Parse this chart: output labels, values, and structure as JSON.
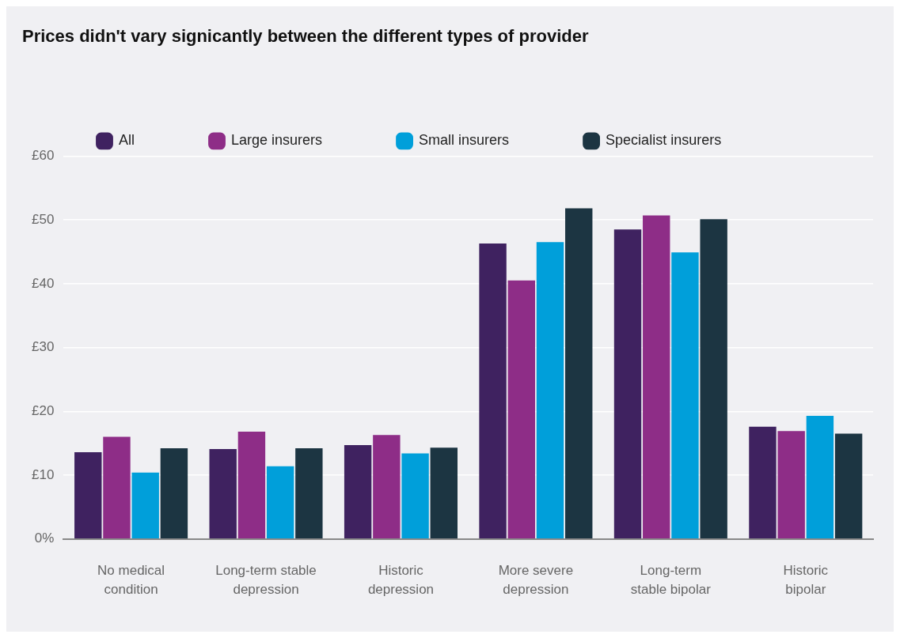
{
  "chart_data": {
    "type": "bar",
    "title": "Prices didn't vary signicantly between the different types of provider",
    "categories": [
      "No medical condition",
      "Long-term stable depression",
      "Historic depression",
      "More severe depression",
      "Long-term stable bipolar",
      "Historic bipolar"
    ],
    "series": [
      {
        "name": "All",
        "color": "#3f2260",
        "values": [
          13.6,
          14.1,
          14.7,
          46.3,
          48.5,
          17.6
        ]
      },
      {
        "name": "Large insurers",
        "color": "#8e2d87",
        "values": [
          16.0,
          16.8,
          16.3,
          40.5,
          50.7,
          16.9
        ]
      },
      {
        "name": "Small insurers",
        "color": "#009fda",
        "values": [
          10.4,
          11.4,
          13.4,
          46.5,
          44.9,
          19.3
        ]
      },
      {
        "name": "Specialist insurers",
        "color": "#1c3542",
        "values": [
          14.2,
          14.2,
          14.3,
          51.8,
          50.1,
          16.5
        ]
      }
    ],
    "ylim": [
      0,
      60
    ],
    "yticks": [
      {
        "value": 0,
        "label": "0%"
      },
      {
        "value": 10,
        "label": "£10"
      },
      {
        "value": 20,
        "label": "£20"
      },
      {
        "value": 30,
        "label": "£30"
      },
      {
        "value": 40,
        "label": "£40"
      },
      {
        "value": 50,
        "label": "£50"
      },
      {
        "value": 60,
        "label": "£60"
      }
    ],
    "grid": "y",
    "legend": "top"
  }
}
